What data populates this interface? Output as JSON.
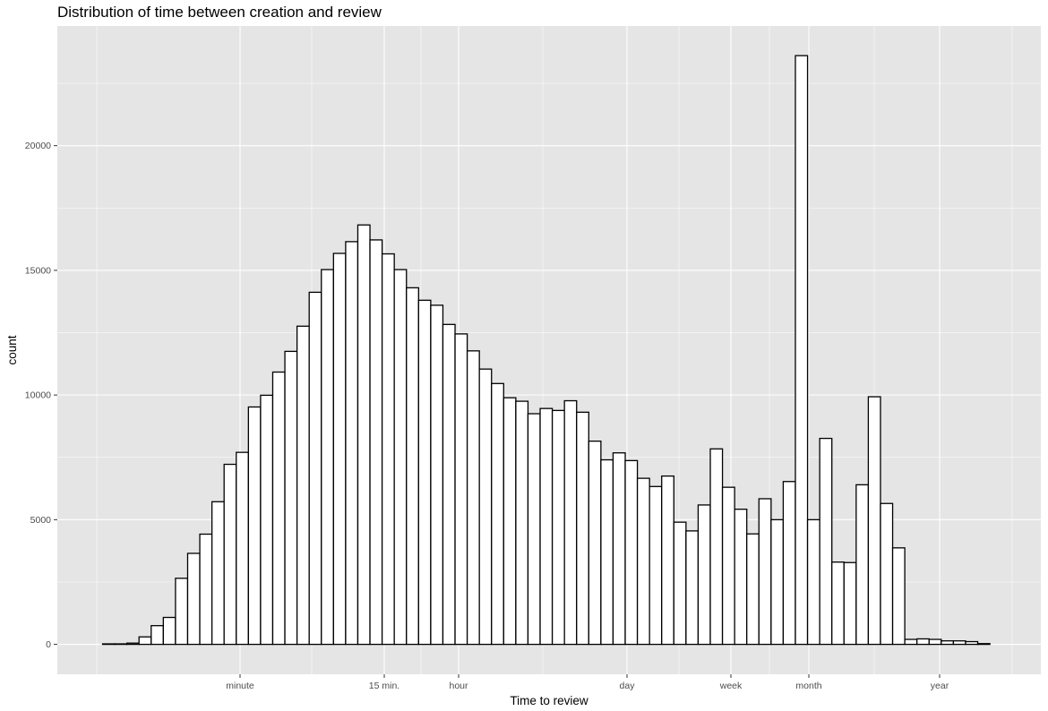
{
  "chart_data": {
    "type": "bar",
    "title": "Distribution of time between creation and review",
    "xlabel": "Time to review",
    "ylabel": "count",
    "x_tick_labels": [
      "minute",
      "15 min.",
      "hour",
      "day",
      "week",
      "month",
      "year"
    ],
    "y_ticks": [
      0,
      5000,
      10000,
      15000,
      20000
    ],
    "ylim": [
      -1200,
      24800
    ],
    "grid": true,
    "bar_fill": "#ffffff",
    "bar_outline": "#000000",
    "panel_background": "#e5e5e5",
    "grid_color": "#ffffff",
    "values": [
      20,
      20,
      50,
      300,
      750,
      1080,
      2650,
      3650,
      4420,
      5720,
      7220,
      7700,
      9520,
      9990,
      10920,
      11750,
      12760,
      14120,
      15030,
      15680,
      16150,
      16820,
      16220,
      15660,
      15030,
      14300,
      13800,
      13600,
      12830,
      12450,
      11770,
      11040,
      10460,
      9890,
      9750,
      9250,
      9460,
      9380,
      9770,
      9310,
      8150,
      7400,
      7680,
      7370,
      6660,
      6330,
      6750,
      4900,
      4550,
      5590,
      7840,
      6300,
      5420,
      4430,
      5840,
      5000,
      6530,
      23610,
      5000,
      8260,
      3300,
      3280,
      6400,
      9930,
      5650,
      3870,
      200,
      220,
      200,
      140,
      140,
      110,
      30
    ]
  }
}
